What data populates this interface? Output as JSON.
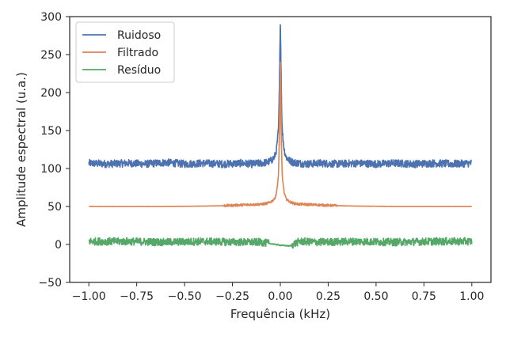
{
  "chart_data": {
    "type": "line",
    "xlabel": "Frequência (kHz)",
    "ylabel": "Amplitude espectral (u.a.)",
    "xlim": [
      -1.1,
      1.1
    ],
    "ylim": [
      -50,
      300
    ],
    "xticks": [
      -1.0,
      -0.75,
      -0.5,
      -0.25,
      0.0,
      0.25,
      0.5,
      0.75,
      1.0
    ],
    "xtick_labels": [
      "−1.00",
      "−0.75",
      "−0.50",
      "−0.25",
      "0.00",
      "0.25",
      "0.50",
      "0.75",
      "1.00"
    ],
    "yticks": [
      -50,
      0,
      50,
      100,
      150,
      200,
      250,
      300
    ],
    "ytick_labels": [
      "−50",
      "0",
      "50",
      "100",
      "150",
      "200",
      "250",
      "300"
    ],
    "grid": false,
    "legend_position": "top-left",
    "series": [
      {
        "name": "Ruidoso",
        "color": "#4c72b0",
        "x": [
          -1.0,
          -0.9,
          -0.8,
          -0.7,
          -0.6,
          -0.5,
          -0.4,
          -0.3,
          -0.2,
          -0.15,
          -0.1,
          -0.07,
          -0.05,
          -0.03,
          -0.02,
          -0.01,
          -0.005,
          0.0,
          0.005,
          0.01,
          0.02,
          0.03,
          0.05,
          0.07,
          0.1,
          0.15,
          0.2,
          0.3,
          0.4,
          0.5,
          0.6,
          0.7,
          0.8,
          0.9,
          1.0
        ],
        "y": [
          107,
          106,
          107,
          106,
          108,
          106,
          107,
          106,
          107,
          106,
          107,
          108,
          110,
          115,
          125,
          150,
          200,
          290,
          200,
          150,
          125,
          115,
          110,
          108,
          107,
          106,
          107,
          106,
          107,
          106,
          107,
          106,
          107,
          106,
          107
        ],
        "noise": 5
      },
      {
        "name": "Filtrado",
        "color": "#dd8452",
        "x": [
          -1.0,
          -0.8,
          -0.6,
          -0.4,
          -0.3,
          -0.25,
          -0.2,
          -0.15,
          -0.1,
          -0.07,
          -0.05,
          -0.03,
          -0.02,
          -0.01,
          -0.005,
          0.0,
          0.005,
          0.01,
          0.02,
          0.03,
          0.05,
          0.07,
          0.1,
          0.15,
          0.2,
          0.25,
          0.3,
          0.4,
          0.6,
          0.8,
          1.0
        ],
        "y": [
          50,
          50,
          50,
          50.5,
          51,
          51.5,
          52,
          52.5,
          53,
          54,
          56,
          60,
          68,
          90,
          140,
          240,
          140,
          90,
          68,
          60,
          56,
          54,
          53,
          52.5,
          52,
          51.5,
          51,
          50.5,
          50,
          50,
          50
        ],
        "noise": 1
      },
      {
        "name": "Resíduo",
        "color": "#55a868",
        "x": [
          -1.0,
          -0.8,
          -0.6,
          -0.4,
          -0.2,
          -0.1,
          -0.05,
          0.0,
          0.05,
          0.1,
          0.2,
          0.4,
          0.6,
          0.8,
          1.0
        ],
        "y": [
          4,
          4,
          3,
          4,
          3,
          3,
          1,
          -1,
          -2,
          4,
          3,
          4,
          3,
          4,
          4
        ],
        "noise": 5
      }
    ]
  }
}
